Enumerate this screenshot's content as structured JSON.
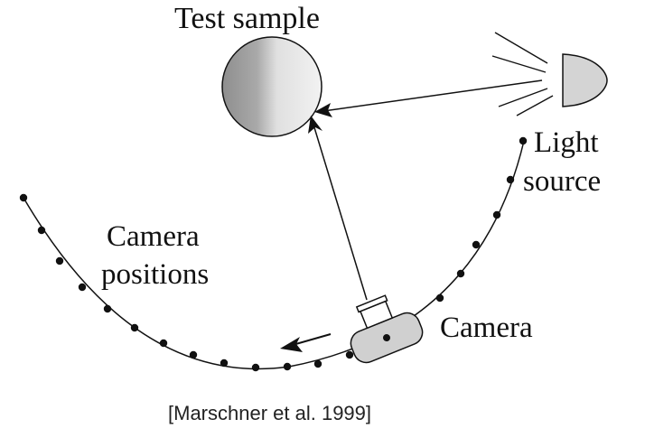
{
  "diagram": {
    "title_label": "Test sample",
    "light_label_line1": "Light",
    "light_label_line2": "source",
    "camera_positions_line1": "Camera",
    "camera_positions_line2": "positions",
    "camera_label": "Camera",
    "citation": "[Marschner et al. 1999]"
  },
  "colors": {
    "ink": "#111111",
    "sphere_dark": "#8e8e8e",
    "sphere_light": "#f2f2f2",
    "lamp_fill": "#d4d4d4",
    "camera_fill": "#d0d0d0"
  },
  "icons": {
    "sample": "sphere",
    "light": "lamp-with-rays",
    "camera": "camera"
  }
}
